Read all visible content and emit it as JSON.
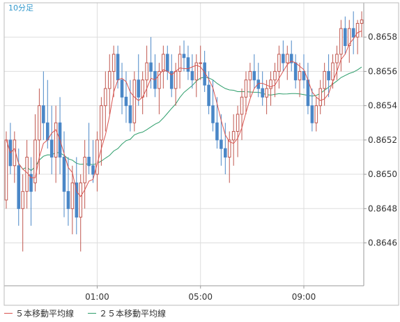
{
  "timeframe_label": "10分足",
  "colors": {
    "up": "#c0574f",
    "down": "#4a87c7",
    "ma5": "#d9534f",
    "ma25": "#2e9e6b",
    "grid": "#dddddd",
    "axis_text": "#333333",
    "timeframe_text": "#3399cc"
  },
  "chart_data": {
    "type": "candlestick",
    "title": "",
    "xlabel": "",
    "ylabel": "",
    "ylim": [
      0.86435,
      0.866
    ],
    "x_ticks": [
      "01:00",
      "05:00",
      "09:00"
    ],
    "x_tick_index": [
      22,
      47,
      72
    ],
    "y_ticks": [
      "0.8646",
      "0.8648",
      "0.8650",
      "0.8652",
      "0.8654",
      "0.8656",
      "0.8658"
    ],
    "y_tick_values": [
      0.8646,
      0.8648,
      0.865,
      0.8652,
      0.8654,
      0.8656,
      0.8658
    ],
    "grid": true,
    "legend_position": "bottom-left",
    "ohlc": [
      [
        0.86485,
        0.86525,
        0.8648,
        0.8652
      ],
      [
        0.8652,
        0.8653,
        0.865,
        0.86505
      ],
      [
        0.86505,
        0.86525,
        0.86495,
        0.8652
      ],
      [
        0.86505,
        0.86515,
        0.8647,
        0.8648
      ],
      [
        0.8648,
        0.865,
        0.86455,
        0.8649
      ],
      [
        0.8649,
        0.8652,
        0.8648,
        0.8651
      ],
      [
        0.865,
        0.8651,
        0.8647,
        0.8649
      ],
      [
        0.86495,
        0.86535,
        0.8649,
        0.8652
      ],
      [
        0.8652,
        0.8655,
        0.865,
        0.8654
      ],
      [
        0.8654,
        0.8656,
        0.8652,
        0.8653
      ],
      [
        0.8653,
        0.86555,
        0.86515,
        0.8652
      ],
      [
        0.8652,
        0.8654,
        0.865,
        0.8651
      ],
      [
        0.8651,
        0.8654,
        0.86495,
        0.8653
      ],
      [
        0.8653,
        0.86545,
        0.865,
        0.8651
      ],
      [
        0.8651,
        0.86525,
        0.86475,
        0.8649
      ],
      [
        0.8649,
        0.8651,
        0.8647,
        0.8648
      ],
      [
        0.8648,
        0.86505,
        0.86465,
        0.86495
      ],
      [
        0.86495,
        0.8651,
        0.86465,
        0.86475
      ],
      [
        0.86475,
        0.865,
        0.86455,
        0.86495
      ],
      [
        0.86495,
        0.8652,
        0.8648,
        0.8651
      ],
      [
        0.8651,
        0.8653,
        0.865,
        0.86505
      ],
      [
        0.86505,
        0.8652,
        0.86495,
        0.865
      ],
      [
        0.865,
        0.86525,
        0.8649,
        0.8652
      ],
      [
        0.8652,
        0.86545,
        0.86505,
        0.8654
      ],
      [
        0.8654,
        0.8656,
        0.86525,
        0.8655
      ],
      [
        0.8655,
        0.8657,
        0.86535,
        0.8656
      ],
      [
        0.8656,
        0.86575,
        0.86545,
        0.8657
      ],
      [
        0.8657,
        0.86575,
        0.8655,
        0.86555
      ],
      [
        0.86555,
        0.86565,
        0.86535,
        0.86545
      ],
      [
        0.86545,
        0.8656,
        0.8653,
        0.8654
      ],
      [
        0.8654,
        0.86555,
        0.86525,
        0.8653
      ],
      [
        0.8653,
        0.8656,
        0.86525,
        0.86555
      ],
      [
        0.86555,
        0.8657,
        0.8654,
        0.86545
      ],
      [
        0.86545,
        0.8656,
        0.86535,
        0.86555
      ],
      [
        0.86555,
        0.86575,
        0.86545,
        0.86565
      ],
      [
        0.86565,
        0.8658,
        0.8655,
        0.8656
      ],
      [
        0.8656,
        0.8657,
        0.86545,
        0.8655
      ],
      [
        0.8655,
        0.86565,
        0.86535,
        0.8656
      ],
      [
        0.8656,
        0.86575,
        0.8655,
        0.8657
      ],
      [
        0.8657,
        0.86575,
        0.86555,
        0.8656
      ],
      [
        0.8656,
        0.8657,
        0.86545,
        0.8655
      ],
      [
        0.8655,
        0.86565,
        0.8654,
        0.8656
      ],
      [
        0.8656,
        0.86575,
        0.8655,
        0.8657
      ],
      [
        0.8657,
        0.86578,
        0.8656,
        0.86568
      ],
      [
        0.86568,
        0.86575,
        0.86555,
        0.8656
      ],
      [
        0.8656,
        0.8657,
        0.8655,
        0.86555
      ],
      [
        0.86555,
        0.8657,
        0.86545,
        0.86565
      ],
      [
        0.86565,
        0.86575,
        0.86555,
        0.86565
      ],
      [
        0.86565,
        0.86572,
        0.86548,
        0.86552
      ],
      [
        0.86552,
        0.8656,
        0.86535,
        0.8654
      ],
      [
        0.8654,
        0.86555,
        0.86525,
        0.8653
      ],
      [
        0.8653,
        0.86545,
        0.86515,
        0.8652
      ],
      [
        0.8652,
        0.86535,
        0.86505,
        0.86515
      ],
      [
        0.86515,
        0.8653,
        0.865,
        0.8651
      ],
      [
        0.8651,
        0.86525,
        0.86495,
        0.8652
      ],
      [
        0.8652,
        0.86535,
        0.86505,
        0.86525
      ],
      [
        0.86525,
        0.8654,
        0.8651,
        0.86535
      ],
      [
        0.86535,
        0.8655,
        0.8652,
        0.86545
      ],
      [
        0.86545,
        0.8656,
        0.86535,
        0.86555
      ],
      [
        0.86555,
        0.86565,
        0.86545,
        0.8656
      ],
      [
        0.8656,
        0.8657,
        0.8655,
        0.86555
      ],
      [
        0.86555,
        0.86565,
        0.86545,
        0.8655
      ],
      [
        0.8655,
        0.8656,
        0.8654,
        0.86545
      ],
      [
        0.86545,
        0.86555,
        0.86535,
        0.8655
      ],
      [
        0.8655,
        0.8656,
        0.8654,
        0.86555
      ],
      [
        0.86555,
        0.86565,
        0.86545,
        0.8656
      ],
      [
        0.8656,
        0.86575,
        0.8655,
        0.8657
      ],
      [
        0.8657,
        0.86578,
        0.8656,
        0.86565
      ],
      [
        0.86565,
        0.86575,
        0.86555,
        0.8657
      ],
      [
        0.8657,
        0.86578,
        0.8656,
        0.86565
      ],
      [
        0.86565,
        0.8657,
        0.8655,
        0.86555
      ],
      [
        0.86555,
        0.86565,
        0.86545,
        0.8656
      ],
      [
        0.8656,
        0.8657,
        0.8655,
        0.86555
      ],
      [
        0.86555,
        0.86565,
        0.86535,
        0.8654
      ],
      [
        0.8654,
        0.8655,
        0.86525,
        0.8653
      ],
      [
        0.8653,
        0.86545,
        0.86525,
        0.8654
      ],
      [
        0.8654,
        0.86555,
        0.86535,
        0.8655
      ],
      [
        0.8655,
        0.86565,
        0.8654,
        0.8656
      ],
      [
        0.8656,
        0.8657,
        0.86545,
        0.86555
      ],
      [
        0.86555,
        0.8657,
        0.8655,
        0.86565
      ],
      [
        0.86565,
        0.86575,
        0.86555,
        0.8657
      ],
      [
        0.8657,
        0.8659,
        0.8656,
        0.86585
      ],
      [
        0.86585,
        0.86592,
        0.8657,
        0.86575
      ],
      [
        0.86575,
        0.8659,
        0.86565,
        0.86585
      ],
      [
        0.86585,
        0.86595,
        0.8657,
        0.8658
      ],
      [
        0.8658,
        0.8659,
        0.8657,
        0.86588
      ],
      [
        0.86588,
        0.86595,
        0.8658,
        0.8659
      ]
    ],
    "series": [
      {
        "name": "５本移動平均線",
        "type": "line"
      },
      {
        "name": "２５本移動平均線",
        "type": "line"
      }
    ]
  }
}
